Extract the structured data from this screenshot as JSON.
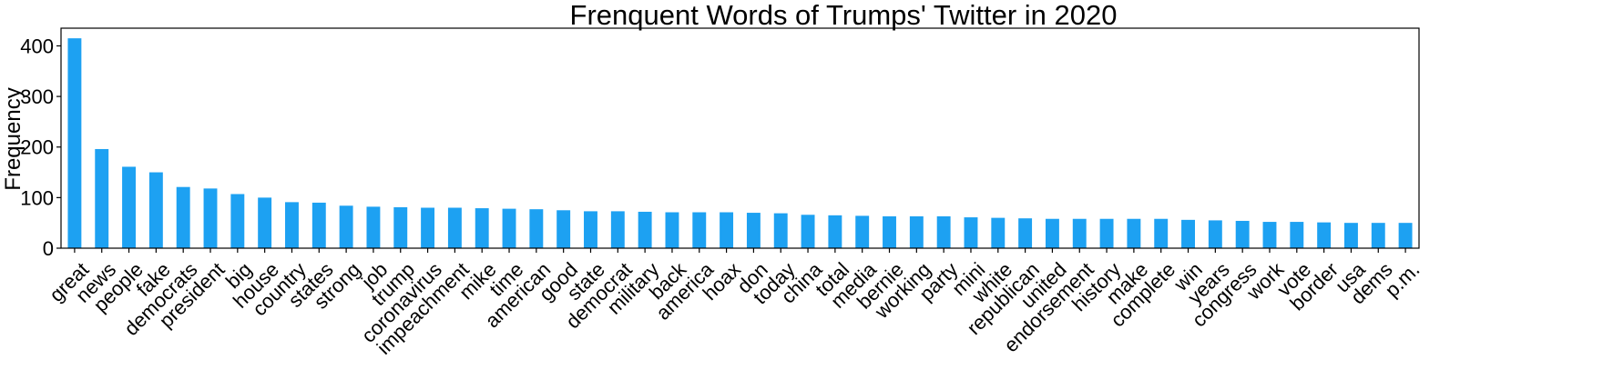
{
  "chart_data": {
    "type": "bar",
    "title": "Frenquent Words of Trumps' Twitter in 2020",
    "xlabel": "",
    "ylabel": "Frequency",
    "ylim": [
      0,
      435
    ],
    "yticks": [
      0,
      100,
      200,
      300,
      400
    ],
    "grid": false,
    "legend": "none",
    "bar_color": "#1DA1F2",
    "categories": [
      "great",
      "news",
      "people",
      "fake",
      "democrats",
      "president",
      "big",
      "house",
      "country",
      "states",
      "strong",
      "job",
      "trump",
      "coronavirus",
      "impeachment",
      "mike",
      "time",
      "american",
      "good",
      "state",
      "democrat",
      "military",
      "back",
      "america",
      "hoax",
      "don",
      "today",
      "china",
      "total",
      "media",
      "bernie",
      "working",
      "party",
      "mini",
      "white",
      "republican",
      "united",
      "endorsement",
      "history",
      "make",
      "complete",
      "win",
      "years",
      "congress",
      "work",
      "vote",
      "border",
      "usa",
      "dems",
      "p.m."
    ],
    "values": [
      415,
      196,
      161,
      150,
      121,
      118,
      107,
      100,
      91,
      90,
      84,
      82,
      81,
      80,
      80,
      79,
      78,
      77,
      75,
      73,
      73,
      72,
      71,
      71,
      71,
      70,
      69,
      66,
      65,
      64,
      63,
      63,
      63,
      61,
      60,
      59,
      58,
      58,
      58,
      58,
      58,
      56,
      55,
      54,
      52,
      52,
      51,
      50,
      50,
      50
    ]
  }
}
